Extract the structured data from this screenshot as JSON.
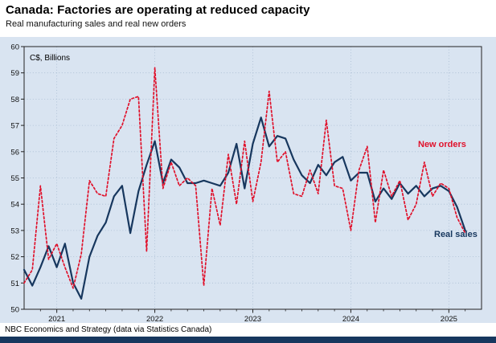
{
  "header": {
    "title": "Canada: Factories are operating at reduced capacity",
    "subtitle": "Real manufacturing sales and real new orders"
  },
  "footer": {
    "source": "NBC Economics and Strategy (data via Statistics Canada)"
  },
  "colors": {
    "chart_background": "#d9e4f1",
    "real_sales_line": "#17375e",
    "new_orders_line": "#e0112b",
    "bottom_bar": "#17375e",
    "gridline": "#a9bcd2",
    "frame": "#222222"
  },
  "chart_data": {
    "type": "line",
    "unit_label": "C$, Billions",
    "ylim": [
      50,
      60
    ],
    "y_ticks": [
      50,
      51,
      52,
      53,
      54,
      55,
      56,
      57,
      58,
      59,
      60
    ],
    "x_tick_labels": [
      "2021",
      "2022",
      "2023",
      "2024",
      "2025"
    ],
    "x_tick_months": [
      4,
      16,
      28,
      40,
      52
    ],
    "x_domain_months": 56,
    "x_start": "2020-09",
    "frequency": "monthly",
    "grid": "dotted",
    "legend_position": "inline-labels",
    "series": [
      {
        "name": "Real sales",
        "color": "#17375e",
        "width": 2.2,
        "dash": "",
        "values": [
          51.5,
          50.9,
          51.6,
          52.4,
          51.6,
          52.5,
          51.0,
          50.4,
          52.0,
          52.8,
          53.3,
          54.3,
          54.7,
          52.9,
          54.5,
          55.5,
          56.4,
          54.8,
          55.7,
          55.4,
          54.8,
          54.8,
          54.9,
          54.8,
          54.7,
          55.2,
          56.3,
          54.6,
          56.3,
          57.3,
          56.2,
          56.6,
          56.5,
          55.7,
          55.1,
          54.8,
          55.5,
          55.1,
          55.6,
          55.8,
          54.9,
          55.2,
          55.2,
          54.1,
          54.6,
          54.2,
          54.8,
          54.4,
          54.7,
          54.3,
          54.6,
          54.7,
          54.5,
          53.9,
          53.0
        ]
      },
      {
        "name": "New orders",
        "color": "#e0112b",
        "width": 1.7,
        "dash": "2.5,2.6",
        "values": [
          51.0,
          51.5,
          54.7,
          51.9,
          52.5,
          51.6,
          50.8,
          52.1,
          54.9,
          54.4,
          54.3,
          56.5,
          57.0,
          58.0,
          58.1,
          52.2,
          59.2,
          54.6,
          55.6,
          54.7,
          55.0,
          54.7,
          50.9,
          54.6,
          53.2,
          55.9,
          54.0,
          56.4,
          54.1,
          55.6,
          58.3,
          55.6,
          56.0,
          54.4,
          54.3,
          55.3,
          54.4,
          57.2,
          54.7,
          54.6,
          53.0,
          55.3,
          56.2,
          53.3,
          55.3,
          54.3,
          54.9,
          53.4,
          54.0,
          55.6,
          54.3,
          54.8,
          54.6,
          53.5,
          52.9
        ]
      }
    ]
  }
}
